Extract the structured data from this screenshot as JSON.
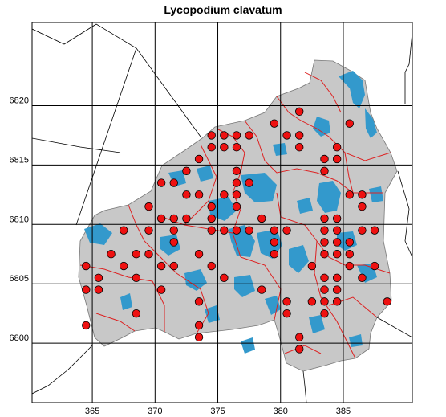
{
  "title": "Lycopodium clavatum",
  "colors": {
    "region_fill": "#c8c8c8",
    "water": "#3399cc",
    "district_lines": "#dd2222",
    "occurrence_marker": "#ee1111",
    "grid": "#000000"
  },
  "chart_data": {
    "type": "scatter",
    "title": "Lycopodium clavatum",
    "x_ticks": [
      365,
      370,
      375,
      380,
      385
    ],
    "y_ticks": [
      6800,
      6805,
      6810,
      6815,
      6820
    ],
    "xlim": [
      360.2,
      390.5
    ],
    "ylim": [
      6795.0,
      6827.0
    ],
    "grid": true,
    "points": [
      [
        381.5,
        6819.5
      ],
      [
        379.5,
        6818.5
      ],
      [
        385.5,
        6818.5
      ],
      [
        374.5,
        6817.5
      ],
      [
        375.5,
        6817.5
      ],
      [
        376.5,
        6817.5
      ],
      [
        377.5,
        6817.5
      ],
      [
        380.5,
        6817.5
      ],
      [
        381.5,
        6817.5
      ],
      [
        374.5,
        6816.5
      ],
      [
        375.5,
        6816.5
      ],
      [
        376.5,
        6816.5
      ],
      [
        381.5,
        6816.5
      ],
      [
        384.5,
        6816.5
      ],
      [
        373.5,
        6815.5
      ],
      [
        383.5,
        6815.5
      ],
      [
        384.5,
        6815.5
      ],
      [
        372.5,
        6814.5
      ],
      [
        376.5,
        6814.5
      ],
      [
        383.5,
        6814.5
      ],
      [
        370.5,
        6813.5
      ],
      [
        371.5,
        6813.5
      ],
      [
        376.5,
        6813.5
      ],
      [
        377.5,
        6813.5
      ],
      [
        372.5,
        6812.5
      ],
      [
        373.5,
        6812.5
      ],
      [
        375.5,
        6812.5
      ],
      [
        376.5,
        6812.5
      ],
      [
        385.5,
        6812.5
      ],
      [
        386.5,
        6812.5
      ],
      [
        369.5,
        6811.5
      ],
      [
        374.5,
        6811.5
      ],
      [
        376.5,
        6811.5
      ],
      [
        386.5,
        6811.5
      ],
      [
        370.5,
        6810.5
      ],
      [
        371.5,
        6810.5
      ],
      [
        372.5,
        6810.5
      ],
      [
        374.5,
        6810.5
      ],
      [
        378.5,
        6810.5
      ],
      [
        383.5,
        6810.5
      ],
      [
        384.5,
        6810.5
      ],
      [
        367.5,
        6809.5
      ],
      [
        369.5,
        6809.5
      ],
      [
        371.5,
        6809.5
      ],
      [
        374.5,
        6809.5
      ],
      [
        375.5,
        6809.5
      ],
      [
        376.5,
        6809.5
      ],
      [
        377.5,
        6809.5
      ],
      [
        379.5,
        6809.5
      ],
      [
        380.5,
        6809.5
      ],
      [
        383.5,
        6809.5
      ],
      [
        384.5,
        6809.5
      ],
      [
        386.5,
        6809.5
      ],
      [
        387.5,
        6809.5
      ],
      [
        371.5,
        6808.5
      ],
      [
        379.5,
        6808.5
      ],
      [
        383.5,
        6808.5
      ],
      [
        384.5,
        6808.5
      ],
      [
        385.5,
        6808.5
      ],
      [
        366.5,
        6807.5
      ],
      [
        368.5,
        6807.5
      ],
      [
        369.5,
        6807.5
      ],
      [
        373.5,
        6807.5
      ],
      [
        379.5,
        6807.5
      ],
      [
        383.5,
        6807.5
      ],
      [
        384.5,
        6807.5
      ],
      [
        385.5,
        6807.5
      ],
      [
        364.5,
        6806.5
      ],
      [
        367.5,
        6806.5
      ],
      [
        370.5,
        6806.5
      ],
      [
        371.5,
        6806.5
      ],
      [
        374.5,
        6806.5
      ],
      [
        382.5,
        6806.5
      ],
      [
        385.5,
        6806.5
      ],
      [
        387.5,
        6806.5
      ],
      [
        365.5,
        6805.5
      ],
      [
        368.5,
        6805.5
      ],
      [
        375.5,
        6805.5
      ],
      [
        383.5,
        6805.5
      ],
      [
        384.5,
        6805.5
      ],
      [
        386.5,
        6805.5
      ],
      [
        364.5,
        6804.5
      ],
      [
        365.5,
        6804.5
      ],
      [
        370.5,
        6804.5
      ],
      [
        378.5,
        6804.5
      ],
      [
        383.5,
        6804.5
      ],
      [
        384.5,
        6804.5
      ],
      [
        373.5,
        6803.5
      ],
      [
        380.5,
        6803.5
      ],
      [
        382.5,
        6803.5
      ],
      [
        383.5,
        6803.5
      ],
      [
        384.5,
        6803.5
      ],
      [
        388.5,
        6803.5
      ],
      [
        368.5,
        6802.5
      ],
      [
        380.5,
        6802.5
      ],
      [
        383.5,
        6802.5
      ],
      [
        364.5,
        6801.5
      ],
      [
        373.5,
        6801.5
      ],
      [
        373.5,
        6800.5
      ],
      [
        381.5,
        6800.5
      ],
      [
        381.5,
        6799.5
      ]
    ]
  }
}
